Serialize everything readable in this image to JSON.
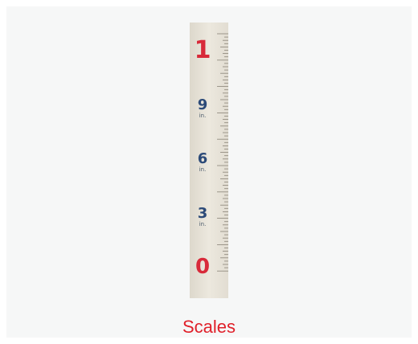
{
  "ruler": {
    "marks": [
      {
        "number": "1"
      },
      {
        "number": "9",
        "unit": "in."
      },
      {
        "number": "6",
        "unit": "in."
      },
      {
        "number": "3",
        "unit": "in."
      },
      {
        "number": "0"
      }
    ]
  },
  "caption": "Scales"
}
